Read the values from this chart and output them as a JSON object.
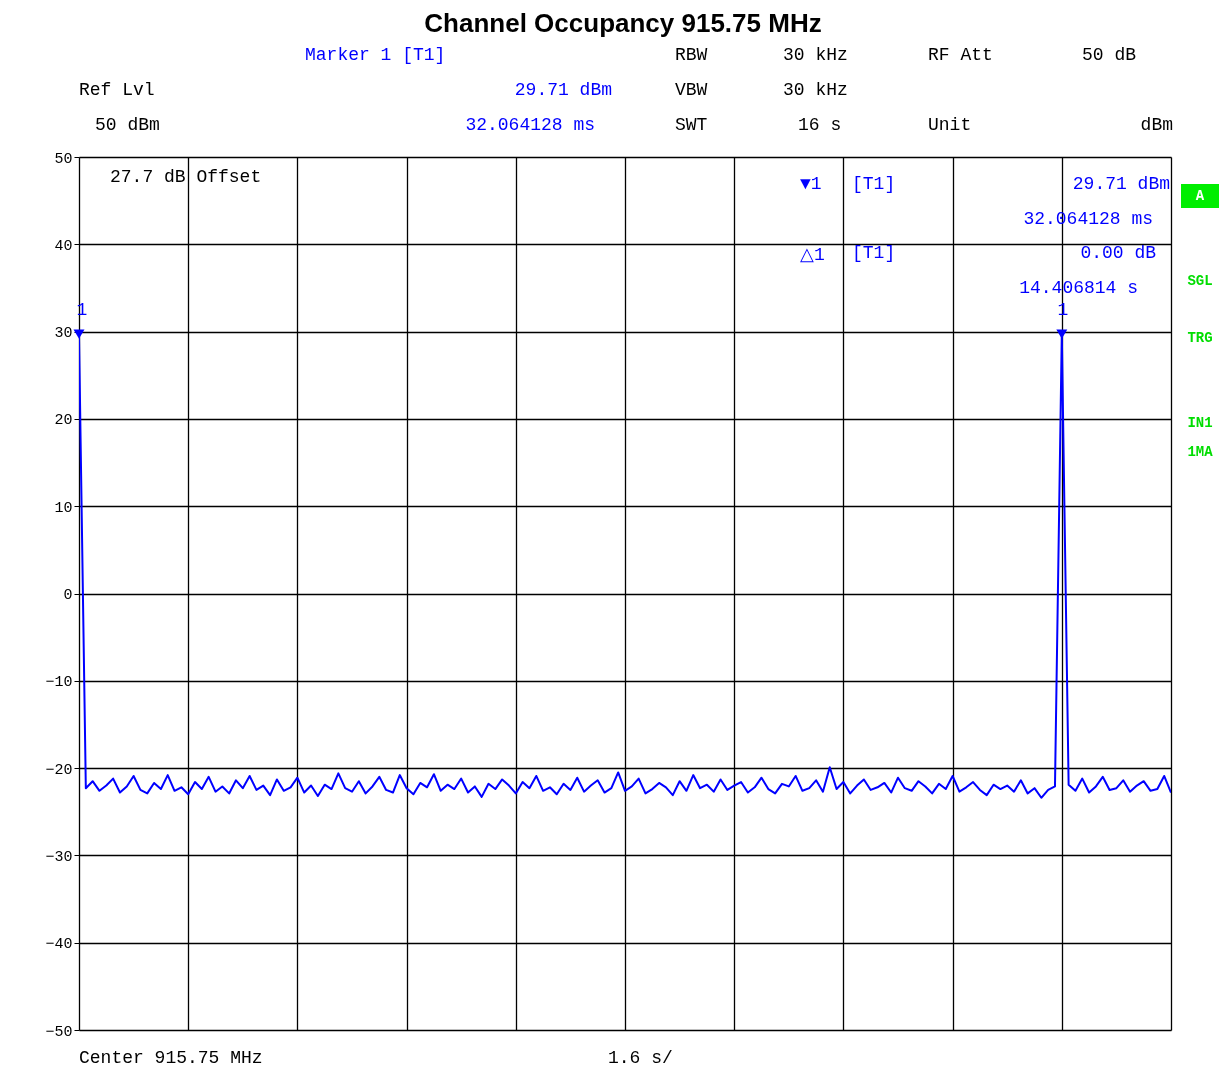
{
  "chart_data": {
    "type": "line",
    "title": "Channel Occupancy  915.75  MHz",
    "categories": [
      null,
      null,
      null,
      null,
      null,
      null,
      null,
      null,
      null,
      null,
      null,
      null,
      null,
      null,
      null,
      null,
      null,
      null,
      null,
      null,
      null,
      null,
      null,
      null,
      null,
      null,
      null,
      null,
      null,
      null,
      null,
      null,
      null,
      null,
      null,
      null,
      null,
      null,
      null,
      null,
      null,
      null,
      null,
      null,
      null,
      null,
      null,
      null,
      null,
      null,
      null,
      null,
      null,
      null,
      null,
      null,
      null,
      null,
      null,
      null,
      null,
      null,
      null,
      null,
      null,
      null,
      null,
      null,
      null,
      null,
      null,
      null,
      null,
      null,
      null,
      null,
      null,
      null,
      null,
      null,
      null,
      null,
      null,
      null,
      null,
      null,
      null,
      null,
      null,
      null,
      null,
      null,
      null,
      null,
      null,
      null,
      null,
      null,
      null,
      null,
      null,
      null,
      null,
      null,
      null,
      null,
      null,
      null,
      null,
      null,
      null,
      null,
      null,
      null,
      null,
      null,
      null,
      null,
      null,
      null,
      null,
      null,
      null,
      null,
      null,
      null,
      null,
      null,
      null,
      null,
      null,
      null,
      null,
      null,
      null,
      null,
      null,
      null,
      null,
      null,
      null,
      null,
      null,
      null,
      null,
      null,
      null,
      null,
      null,
      null,
      null,
      null,
      null,
      null,
      null,
      null,
      null,
      null,
      null,
      null,
      null
    ],
    "series": [
      {
        "type": "line",
        "color": "#0000ff",
        "values": [
          29.71,
          -22.3,
          -21.5,
          -22.6,
          -22.0,
          -21.2,
          -22.8,
          -22.1,
          -20.9,
          -22.5,
          -22.9,
          -21.7,
          -22.4,
          -20.8,
          -22.6,
          -22.2,
          -23.0,
          -21.6,
          -22.4,
          -21.0,
          -22.7,
          -22.1,
          -22.9,
          -21.4,
          -22.3,
          -20.9,
          -22.5,
          -22.0,
          -23.1,
          -21.3,
          -22.6,
          -22.2,
          -21.1,
          -22.8,
          -22.0,
          -23.2,
          -21.9,
          -22.4,
          -20.6,
          -22.3,
          -22.7,
          -21.5,
          -22.9,
          -22.1,
          -21.0,
          -22.5,
          -22.8,
          -20.8,
          -22.3,
          -23.0,
          -21.7,
          -22.2,
          -20.7,
          -22.6,
          -21.9,
          -22.4,
          -21.2,
          -22.8,
          -22.1,
          -23.3,
          -21.8,
          -22.4,
          -21.3,
          -22.0,
          -22.9,
          -21.6,
          -22.3,
          -20.9,
          -22.6,
          -22.2,
          -23.0,
          -21.8,
          -22.5,
          -21.1,
          -22.7,
          -22.0,
          -21.4,
          -22.8,
          -22.3,
          -20.5,
          -22.6,
          -22.1,
          -21.2,
          -22.9,
          -22.4,
          -21.7,
          -22.2,
          -23.1,
          -21.5,
          -22.6,
          -20.8,
          -22.3,
          -21.9,
          -22.7,
          -21.3,
          -22.5,
          -22.0,
          -21.6,
          -22.8,
          -22.2,
          -21.1,
          -22.4,
          -22.9,
          -21.8,
          -22.1,
          -20.9,
          -22.6,
          -22.3,
          -21.4,
          -22.7,
          -19.9,
          -22.4,
          -21.6,
          -22.9,
          -22.0,
          -21.3,
          -22.5,
          -22.2,
          -21.7,
          -22.8,
          -21.1,
          -22.3,
          -22.6,
          -21.5,
          -22.1,
          -22.9,
          -21.8,
          -22.4,
          -20.9,
          -22.7,
          -22.2,
          -21.6,
          -22.5,
          -23.1,
          -21.9,
          -22.4,
          -22.0,
          -22.7,
          -21.4,
          -22.9,
          -22.3,
          -23.4,
          -22.5,
          -22.1,
          29.71,
          -21.9,
          -22.6,
          -21.2,
          -22.8,
          -22.1,
          -21.0,
          -22.5,
          -22.3,
          -21.4,
          -22.7,
          -22.0,
          -21.5,
          -22.6,
          -22.4,
          -20.9,
          -22.8
        ]
      },
      {
        "type": "scatter",
        "color": "#0000ff",
        "marker": "triangle",
        "values": [
          29.71,
          null,
          null,
          null,
          null,
          null,
          null,
          null,
          null,
          null,
          null,
          null,
          null,
          null,
          null,
          null,
          null,
          null,
          null,
          null,
          null,
          null,
          null,
          null,
          null,
          null,
          null,
          null,
          null,
          null,
          null,
          null,
          null,
          null,
          null,
          null,
          null,
          null,
          null,
          null,
          null,
          null,
          null,
          null,
          null,
          null,
          null,
          null,
          null,
          null,
          null,
          null,
          null,
          null,
          null,
          null,
          null,
          null,
          null,
          null,
          null,
          null,
          null,
          null,
          null,
          null,
          null,
          null,
          null,
          null,
          null,
          null,
          null,
          null,
          null,
          null,
          null,
          null,
          null,
          null,
          null,
          null,
          null,
          null,
          null,
          null,
          null,
          null,
          null,
          null,
          null,
          null,
          null,
          null,
          null,
          null,
          null,
          null,
          null,
          null,
          null,
          null,
          null,
          null,
          null,
          null,
          null,
          null,
          null,
          null,
          null,
          null,
          null,
          null,
          null,
          null,
          null,
          null,
          null,
          null,
          null,
          null,
          null,
          null,
          null,
          null,
          null,
          null,
          null,
          null,
          null,
          null,
          null,
          null,
          null,
          null,
          null,
          null,
          null,
          null,
          null,
          null,
          null,
          null,
          29.71,
          null,
          null,
          null,
          null,
          null,
          null,
          null,
          null,
          null,
          null,
          null,
          null,
          null,
          null,
          null,
          null
        ]
      }
    ],
    "ylim": [
      -50,
      50
    ],
    "yticks": [
      -50,
      -40,
      -30,
      -20,
      -10,
      0,
      10,
      20,
      30,
      40,
      50
    ],
    "grid": true,
    "tick_labels": "y",
    "annotations": [
      "Marker 1 [T1]",
      "RBW",
      "30 kHz",
      "RF Att",
      "50 dB",
      "Ref Lvl",
      "29.71 dBm",
      "VBW",
      "30 kHz",
      "50 dBm",
      "32.064128 ms",
      "SWT",
      "16 s",
      "Unit",
      "dBm",
      "27.7 dB Offset",
      "▼1",
      "[T1]",
      "29.71 dBm",
      "32.064128 ms",
      "△1",
      "[T1]",
      "0.00 dB",
      "14.406814 s",
      "1",
      "1",
      "A",
      "SGL",
      "TRG",
      "IN1",
      "1MA",
      "Center 915.75 MHz",
      "1.6 s/"
    ]
  }
}
